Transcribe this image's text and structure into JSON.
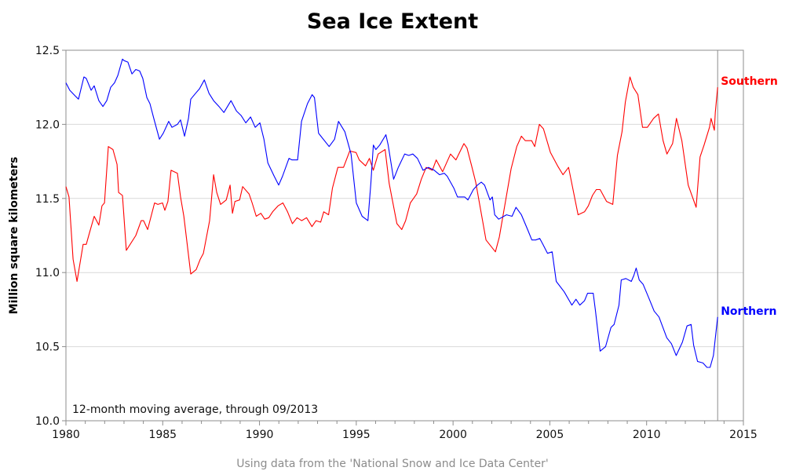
{
  "chart_data": {
    "type": "line",
    "title": "Sea Ice Extent",
    "xlabel": "",
    "ylabel": "Million square kilometers",
    "xlim": [
      1980,
      2015
    ],
    "ylim": [
      10.0,
      12.5
    ],
    "x_ticks": [
      1980,
      1985,
      1990,
      1995,
      2000,
      2005,
      2010,
      2015
    ],
    "x_tick_labels": [
      "1980",
      "1985",
      "1990",
      "1995",
      "2000",
      "2005",
      "2010",
      "2015"
    ],
    "x_minor_tick_step": 1,
    "y_ticks": [
      10.0,
      10.5,
      11.0,
      11.5,
      12.0,
      12.5
    ],
    "y_tick_labels": [
      "10.0",
      "10.5",
      "11.0",
      "11.5",
      "12.0",
      "12.5"
    ],
    "grid": "horizontal",
    "reference_line_x": 2013.67,
    "annotation": "12-month moving average, through 09/2013",
    "footnote": "Using data from the 'National Snow and Ice Data Center'",
    "legend": "inline-right",
    "series": [
      {
        "name": "Southern",
        "color": "#ff0000",
        "points": [
          [
            1980.0,
            11.58
          ],
          [
            1980.16,
            11.51
          ],
          [
            1980.37,
            11.09
          ],
          [
            1980.57,
            10.94
          ],
          [
            1980.89,
            11.19
          ],
          [
            1981.05,
            11.19
          ],
          [
            1981.22,
            11.27
          ],
          [
            1981.46,
            11.38
          ],
          [
            1981.7,
            11.32
          ],
          [
            1981.86,
            11.45
          ],
          [
            1981.99,
            11.47
          ],
          [
            1982.19,
            11.85
          ],
          [
            1982.43,
            11.83
          ],
          [
            1982.64,
            11.73
          ],
          [
            1982.72,
            11.54
          ],
          [
            1982.92,
            11.52
          ],
          [
            1983.12,
            11.15
          ],
          [
            1983.61,
            11.25
          ],
          [
            1983.89,
            11.35
          ],
          [
            1984.01,
            11.35
          ],
          [
            1984.22,
            11.29
          ],
          [
            1984.58,
            11.47
          ],
          [
            1984.75,
            11.46
          ],
          [
            1984.99,
            11.47
          ],
          [
            1985.11,
            11.42
          ],
          [
            1985.27,
            11.48
          ],
          [
            1985.43,
            11.69
          ],
          [
            1985.76,
            11.67
          ],
          [
            1985.92,
            11.51
          ],
          [
            1986.09,
            11.38
          ],
          [
            1986.45,
            10.99
          ],
          [
            1986.73,
            11.02
          ],
          [
            1986.94,
            11.09
          ],
          [
            1987.1,
            11.13
          ],
          [
            1987.42,
            11.35
          ],
          [
            1987.63,
            11.66
          ],
          [
            1987.79,
            11.54
          ],
          [
            1987.99,
            11.46
          ],
          [
            1988.28,
            11.49
          ],
          [
            1988.48,
            11.59
          ],
          [
            1988.6,
            11.4
          ],
          [
            1988.73,
            11.48
          ],
          [
            1988.97,
            11.49
          ],
          [
            1989.13,
            11.58
          ],
          [
            1989.46,
            11.53
          ],
          [
            1989.62,
            11.47
          ],
          [
            1989.83,
            11.38
          ],
          [
            1990.07,
            11.4
          ],
          [
            1990.27,
            11.36
          ],
          [
            1990.48,
            11.37
          ],
          [
            1990.68,
            11.41
          ],
          [
            1990.96,
            11.45
          ],
          [
            1991.21,
            11.47
          ],
          [
            1991.45,
            11.41
          ],
          [
            1991.7,
            11.33
          ],
          [
            1991.94,
            11.37
          ],
          [
            1992.18,
            11.35
          ],
          [
            1992.43,
            11.37
          ],
          [
            1992.71,
            11.31
          ],
          [
            1992.92,
            11.35
          ],
          [
            1993.16,
            11.34
          ],
          [
            1993.32,
            11.41
          ],
          [
            1993.57,
            11.39
          ],
          [
            1993.77,
            11.57
          ],
          [
            1994.05,
            11.71
          ],
          [
            1994.34,
            11.71
          ],
          [
            1994.66,
            11.82
          ],
          [
            1994.99,
            11.81
          ],
          [
            1995.15,
            11.76
          ],
          [
            1995.48,
            11.72
          ],
          [
            1995.68,
            11.77
          ],
          [
            1995.88,
            11.69
          ],
          [
            1996.13,
            11.8
          ],
          [
            1996.49,
            11.83
          ],
          [
            1996.7,
            11.6
          ],
          [
            1997.1,
            11.33
          ],
          [
            1997.35,
            11.29
          ],
          [
            1997.55,
            11.35
          ],
          [
            1997.79,
            11.47
          ],
          [
            1998.12,
            11.53
          ],
          [
            1998.36,
            11.63
          ],
          [
            1998.61,
            11.71
          ],
          [
            1998.93,
            11.69
          ],
          [
            1999.13,
            11.76
          ],
          [
            1999.46,
            11.68
          ],
          [
            1999.87,
            11.8
          ],
          [
            2000.15,
            11.76
          ],
          [
            2000.56,
            11.87
          ],
          [
            2000.72,
            11.84
          ],
          [
            2000.96,
            11.72
          ],
          [
            2001.17,
            11.61
          ],
          [
            2001.7,
            11.22
          ],
          [
            2002.19,
            11.14
          ],
          [
            2002.39,
            11.24
          ],
          [
            2003.0,
            11.7
          ],
          [
            2003.29,
            11.85
          ],
          [
            2003.53,
            11.92
          ],
          [
            2003.73,
            11.89
          ],
          [
            2004.06,
            11.89
          ],
          [
            2004.22,
            11.85
          ],
          [
            2004.46,
            12.0
          ],
          [
            2004.67,
            11.97
          ],
          [
            2005.03,
            11.81
          ],
          [
            2005.4,
            11.72
          ],
          [
            2005.68,
            11.66
          ],
          [
            2005.97,
            11.71
          ],
          [
            2006.46,
            11.39
          ],
          [
            2006.79,
            11.41
          ],
          [
            2006.99,
            11.45
          ],
          [
            2007.2,
            11.52
          ],
          [
            2007.4,
            11.56
          ],
          [
            2007.6,
            11.56
          ],
          [
            2007.93,
            11.48
          ],
          [
            2008.25,
            11.46
          ],
          [
            2008.49,
            11.79
          ],
          [
            2008.73,
            11.95
          ],
          [
            2008.9,
            12.15
          ],
          [
            2009.14,
            12.32
          ],
          [
            2009.31,
            12.25
          ],
          [
            2009.55,
            12.2
          ],
          [
            2009.79,
            11.98
          ],
          [
            2010.04,
            11.98
          ],
          [
            2010.36,
            12.04
          ],
          [
            2010.61,
            12.07
          ],
          [
            2010.77,
            11.95
          ],
          [
            2010.85,
            11.89
          ],
          [
            2011.05,
            11.8
          ],
          [
            2011.34,
            11.87
          ],
          [
            2011.54,
            12.04
          ],
          [
            2011.82,
            11.89
          ],
          [
            2012.15,
            11.59
          ],
          [
            2012.56,
            11.44
          ],
          [
            2012.76,
            11.78
          ],
          [
            2012.97,
            11.86
          ],
          [
            2013.25,
            11.98
          ],
          [
            2013.33,
            12.04
          ],
          [
            2013.5,
            11.96
          ],
          [
            2013.55,
            12.08
          ],
          [
            2013.67,
            12.25
          ]
        ]
      },
      {
        "name": "Northern",
        "color": "#0000ff",
        "points": [
          [
            1980.0,
            12.28
          ],
          [
            1980.2,
            12.23
          ],
          [
            1980.49,
            12.19
          ],
          [
            1980.65,
            12.17
          ],
          [
            1980.93,
            12.32
          ],
          [
            1981.05,
            12.31
          ],
          [
            1981.3,
            12.23
          ],
          [
            1981.46,
            12.26
          ],
          [
            1981.7,
            12.16
          ],
          [
            1981.91,
            12.12
          ],
          [
            1982.11,
            12.16
          ],
          [
            1982.31,
            12.25
          ],
          [
            1982.51,
            12.28
          ],
          [
            1982.68,
            12.33
          ],
          [
            1982.92,
            12.44
          ],
          [
            1983.0,
            12.43
          ],
          [
            1983.2,
            12.42
          ],
          [
            1983.41,
            12.34
          ],
          [
            1983.61,
            12.37
          ],
          [
            1983.81,
            12.36
          ],
          [
            1983.97,
            12.31
          ],
          [
            1984.18,
            12.18
          ],
          [
            1984.34,
            12.14
          ],
          [
            1984.54,
            12.04
          ],
          [
            1984.83,
            11.9
          ],
          [
            1985.03,
            11.94
          ],
          [
            1985.31,
            12.02
          ],
          [
            1985.48,
            11.98
          ],
          [
            1985.76,
            12.0
          ],
          [
            1985.92,
            12.03
          ],
          [
            1986.13,
            11.92
          ],
          [
            1986.33,
            12.04
          ],
          [
            1986.45,
            12.17
          ],
          [
            1986.7,
            12.21
          ],
          [
            1986.9,
            12.24
          ],
          [
            1987.15,
            12.3
          ],
          [
            1987.39,
            12.21
          ],
          [
            1987.63,
            12.16
          ],
          [
            1987.91,
            12.12
          ],
          [
            1988.16,
            12.08
          ],
          [
            1988.53,
            12.16
          ],
          [
            1988.81,
            12.09
          ],
          [
            1989.05,
            12.06
          ],
          [
            1989.29,
            12.01
          ],
          [
            1989.54,
            12.05
          ],
          [
            1989.78,
            11.98
          ],
          [
            1990.02,
            12.01
          ],
          [
            1990.23,
            11.9
          ],
          [
            1990.43,
            11.74
          ],
          [
            1990.76,
            11.65
          ],
          [
            1990.99,
            11.59
          ],
          [
            1991.19,
            11.65
          ],
          [
            1991.52,
            11.77
          ],
          [
            1991.68,
            11.76
          ],
          [
            1991.97,
            11.76
          ],
          [
            1992.17,
            12.02
          ],
          [
            1992.48,
            12.14
          ],
          [
            1992.72,
            12.2
          ],
          [
            1992.84,
            12.18
          ],
          [
            1993.05,
            11.94
          ],
          [
            1993.11,
            11.93
          ],
          [
            1993.6,
            11.85
          ],
          [
            1993.88,
            11.9
          ],
          [
            1994.08,
            12.02
          ],
          [
            1994.41,
            11.95
          ],
          [
            1994.73,
            11.8
          ],
          [
            1995.0,
            11.47
          ],
          [
            1995.3,
            11.38
          ],
          [
            1995.6,
            11.35
          ],
          [
            1995.75,
            11.6
          ],
          [
            1995.88,
            11.86
          ],
          [
            1996.01,
            11.83
          ],
          [
            1996.21,
            11.86
          ],
          [
            1996.53,
            11.93
          ],
          [
            1996.65,
            11.86
          ],
          [
            1996.93,
            11.63
          ],
          [
            1997.17,
            11.71
          ],
          [
            1997.5,
            11.8
          ],
          [
            1997.71,
            11.79
          ],
          [
            1997.92,
            11.8
          ],
          [
            1998.16,
            11.77
          ],
          [
            1998.45,
            11.69
          ],
          [
            1998.73,
            11.71
          ],
          [
            1999.03,
            11.69
          ],
          [
            1999.3,
            11.66
          ],
          [
            1999.55,
            11.67
          ],
          [
            1999.7,
            11.65
          ],
          [
            2000.04,
            11.57
          ],
          [
            2000.23,
            11.51
          ],
          [
            2000.6,
            11.51
          ],
          [
            2000.77,
            11.49
          ],
          [
            2001.05,
            11.56
          ],
          [
            2001.26,
            11.59
          ],
          [
            2001.46,
            11.61
          ],
          [
            2001.63,
            11.59
          ],
          [
            2001.91,
            11.49
          ],
          [
            2002.03,
            11.51
          ],
          [
            2002.15,
            11.39
          ],
          [
            2002.36,
            11.36
          ],
          [
            2002.76,
            11.39
          ],
          [
            2003.05,
            11.38
          ],
          [
            2003.25,
            11.44
          ],
          [
            2003.53,
            11.39
          ],
          [
            2003.85,
            11.29
          ],
          [
            2004.07,
            11.22
          ],
          [
            2004.27,
            11.22
          ],
          [
            2004.48,
            11.23
          ],
          [
            2004.64,
            11.19
          ],
          [
            2004.88,
            11.13
          ],
          [
            2005.12,
            11.14
          ],
          [
            2005.33,
            10.94
          ],
          [
            2005.74,
            10.87
          ],
          [
            2006.14,
            10.78
          ],
          [
            2006.35,
            10.82
          ],
          [
            2006.55,
            10.78
          ],
          [
            2006.79,
            10.81
          ],
          [
            2006.95,
            10.86
          ],
          [
            2007.24,
            10.86
          ],
          [
            2007.36,
            10.74
          ],
          [
            2007.6,
            10.47
          ],
          [
            2007.88,
            10.5
          ],
          [
            2008.16,
            10.63
          ],
          [
            2008.32,
            10.65
          ],
          [
            2008.57,
            10.78
          ],
          [
            2008.69,
            10.95
          ],
          [
            2008.93,
            10.96
          ],
          [
            2009.21,
            10.94
          ],
          [
            2009.34,
            10.98
          ],
          [
            2009.46,
            11.03
          ],
          [
            2009.62,
            10.95
          ],
          [
            2009.82,
            10.92
          ],
          [
            2010.11,
            10.83
          ],
          [
            2010.39,
            10.74
          ],
          [
            2010.64,
            10.7
          ],
          [
            2011.04,
            10.56
          ],
          [
            2011.28,
            10.52
          ],
          [
            2011.53,
            10.44
          ],
          [
            2011.85,
            10.53
          ],
          [
            2012.09,
            10.64
          ],
          [
            2012.3,
            10.65
          ],
          [
            2012.43,
            10.51
          ],
          [
            2012.63,
            10.4
          ],
          [
            2012.91,
            10.39
          ],
          [
            2013.12,
            10.36
          ],
          [
            2013.28,
            10.36
          ],
          [
            2013.45,
            10.44
          ],
          [
            2013.67,
            10.7
          ]
        ]
      }
    ]
  }
}
